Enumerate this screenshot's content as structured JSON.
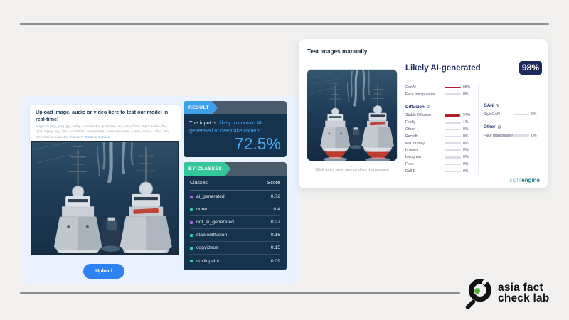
{
  "hive": {
    "card_heading": "Upload image, audio or video here to test our model in real-time!",
    "card_support": "Supports png, jpeg, jpg, webp, x-matroska, quicktime, avi, wmv, h264, mp4, webm, flac, mp3, mpeg, ogg, wav, x-msvideo, x-matroska, x-ms-wmv, mov, x-wav, x-m4a, x-flac, wav, mkv. Use is subject to this site's ",
    "terms_link_label": "Terms of Service",
    "card_support_suffix": ".",
    "upload_label": "Upload",
    "result_tag": "RESULT",
    "result_prefix": "The input is: ",
    "result_verdict": "likely to contain AI-generated or deepfake content",
    "result_score": "72.5%",
    "classes_tag": "BY CLASSES",
    "classes_col_label": "Classes",
    "classes_col_score": "Score",
    "classes_rows": [
      {
        "label": "ai_generated",
        "score": "0.72",
        "bullet": "#b266e0"
      },
      {
        "label": "none",
        "score": "0.4",
        "bullet": "#2fd0b2"
      },
      {
        "label": "not_ai_generated",
        "score": "0.27",
        "bullet": "#b266e0"
      },
      {
        "label": "stablediffusion",
        "score": "0.16",
        "bullet": "#2fd0b2"
      },
      {
        "label": "cogvideos",
        "score": "0.15",
        "bullet": "#2fd0b2"
      },
      {
        "label": "sdxlinpaint",
        "score": "0.09",
        "bullet": "#2fd0b2"
      }
    ]
  },
  "sightengine": {
    "title": "Test images manually",
    "verdict": "Likely AI-generated",
    "badge": "98%",
    "caption": "Click to try an image or drop it anywhere",
    "top_metrics": [
      {
        "label": "GenAI",
        "pct": "98%",
        "value": 98
      },
      {
        "label": "Face manipulation",
        "pct": "0%",
        "value": 0
      }
    ],
    "diffusion_title": "Diffusion",
    "diffusion_metrics": [
      {
        "label": "Stable Diffusion",
        "pct": "97%",
        "value": 97
      },
      {
        "label": "Firefly",
        "pct": "1%",
        "value": 1
      },
      {
        "label": "Other",
        "pct": "0%",
        "value": 0
      },
      {
        "label": "Recraft",
        "pct": "0%",
        "value": 0
      },
      {
        "label": "MidJourney",
        "pct": "0%",
        "value": 0
      },
      {
        "label": "Imagen",
        "pct": "0%",
        "value": 0
      },
      {
        "label": "Ideogram",
        "pct": "0%",
        "value": 0
      },
      {
        "label": "Flux",
        "pct": "0%",
        "value": 0
      },
      {
        "label": "Dall-E",
        "pct": "0%",
        "value": 0
      }
    ],
    "gan_title": "GAN",
    "gan_metrics": [
      {
        "label": "StyleGAN",
        "pct": "0%",
        "value": 0
      }
    ],
    "other_title": "Other",
    "other_metrics": [
      {
        "label": "Face manipulation",
        "pct": "0%",
        "value": 0
      }
    ],
    "brand_light": "sight",
    "brand_bold": "engine"
  },
  "afcl": {
    "line1": "asia fact",
    "line2": "check lab"
  },
  "colors": {
    "bar_fill": "#b02025",
    "bar_track": "#d9dee6",
    "accent_blue": "#3f9fe8",
    "accent_teal": "#34c79c",
    "navy_panel": "#16334e",
    "badge_navy": "#1d2a5c"
  }
}
